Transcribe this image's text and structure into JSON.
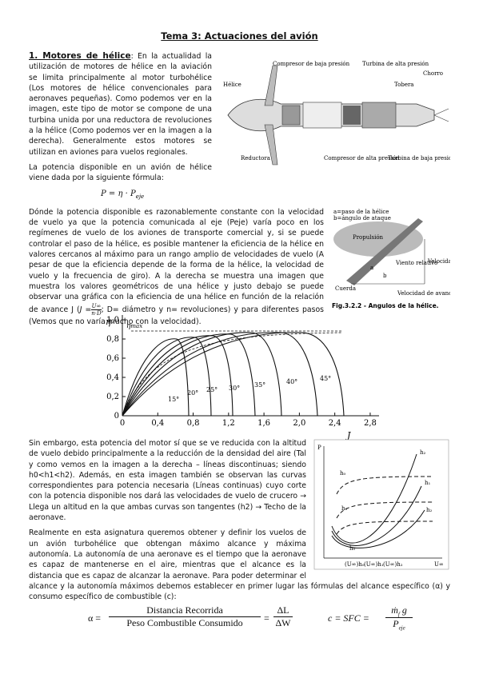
{
  "header": {
    "title": "Tema 3: Actuaciones del avión"
  },
  "section": {
    "heading": "1. Motores de hélice",
    "p1": ": En la actualidad la utilización de motores de hélice en la aviación se limita principalmente al motor turbohélice (Los motores de hélice convencionales para aeronaves pequeñas). Como podemos ver en la imagen, este tipo de motor se compone de una turbina unida por una reductora de revoluciones a la hélice (Como podemos ver en la imagen a la derecha). Generalmente estos motores se utilizan en aviones para vuelos regionales.",
    "p2": "La potencia disponible en un avión de hélice viene dada por la siguiente fórmula:",
    "power_formula": {
      "main": "P = η · P",
      "sub": "eje"
    },
    "p3a": "Dónde la potencia disponible es razonablemente constante con la velocidad de vuelo ya que la potencia comunicada al eje (Peje) varía poco en los regímenes de vuelo de los aviones de transporte comercial y, si se puede controlar el paso de la hélice, es posible mantener la eficiencia de la hélice en valores cercanos al máximo para un rango amplio de velocidades de vuelo (A pesar de que la eficiencia depende de la forma de la hélice, la velocidad de vuelo y la frecuencia de giro).  A la derecha se muestra una imagen que muestra los valores geométricos de una hélice y justo debajo se puede observar una gráfica con la eficiencia de una hélice en función de la relación de avance J (",
    "j_formula": {
      "lhs": "J =",
      "num": "U∞",
      "den": "n·D"
    },
    "p3b": "; D= diámetro y n= revoluciones) y para diferentes pasos (Vemos que no varía mucho con la velocidad).",
    "p4": "Sin embargo, esta potencia del motor sí que se ve reducida con la altitud de vuelo debido principalmente a la reducción de la densidad del aire (Tal y como vemos en la imagen a la derecha – líneas discontinuas; siendo h0<h1<h2). Además, en esta imagen también se observan las curvas correspondientes para potencia necesaria (Líneas continuas) cuyo corte con la potencia disponible nos dará las velocidades de vuelo de crucero → Llega un altitud en la que ambas curvas son tangentes (h2) → Techo de la aeronave.",
    "p5": "Realmente en esta asignatura queremos obtener y definir los vuelos de un avión turbohélice que obtengan máximo alcance y máxima autonomía. La autonomía de una aeronave es el tiempo que la aeronave es capaz de mantenerse en el aire, mientras que el alcance es la distancia que es capaz de alcanzar la aeronave. Para poder determinar el alcance y la autonomía máximos debemos establecer en primer lugar las fórmulas del alcance específico (α) y consumo específico de combustible (c):"
  },
  "engine_figure": {
    "labels": [
      "Compresor de baja presión",
      "Turbina de alta presión",
      "Hélice",
      "Tobera",
      "Chorro",
      "Reductora",
      "Compresor de alta presión",
      "Turbina de baja presión"
    ]
  },
  "blade_figure": {
    "legend_a": "a=paso de la hélice",
    "legend_b": "b=ángulo de ataque",
    "labels": [
      "Propulsión",
      "Velocidad lineal",
      "Viento relativo",
      "Cuerda",
      "Velocidad de avance",
      "a",
      "b"
    ],
    "caption": "Fig.3.2.2 - Angulos de la hélice."
  },
  "efficiency_plot": {
    "y_label": "η",
    "x_label": "J",
    "eta_max": "η",
    "eta_max_sub": "max",
    "xlim": [
      0,
      2.9
    ],
    "ylim": [
      0,
      1.05
    ],
    "xticks": [
      0,
      {
        "value": 0.4,
        "label": "0,4"
      },
      {
        "value": 0.8,
        "label": "0,8"
      },
      {
        "value": 1.2,
        "label": "1,2"
      },
      {
        "value": 1.6,
        "label": "1,6"
      },
      {
        "value": 2.0,
        "label": "2,0"
      },
      {
        "value": 2.4,
        "label": "2,4"
      },
      {
        "value": 2.8,
        "label": "2,8"
      }
    ],
    "yticks": [
      0,
      {
        "value": 0.2,
        "label": "0,2"
      },
      {
        "value": 0.4,
        "label": "0,4"
      },
      {
        "value": 0.6,
        "label": "0,6"
      },
      {
        "value": 0.8,
        "label": "0,8"
      },
      {
        "value": 1.0,
        "label": "1,0"
      }
    ],
    "pitch_labels": [
      "15°",
      "20°",
      "25°",
      "30°",
      "35°",
      "40°",
      "45°"
    ]
  },
  "power_figure": {
    "labels": [
      "P",
      "h₂",
      "h₀",
      "h₁",
      "h₂",
      "h₁",
      "h₀",
      "(U∞)h₀",
      "(U∞)h₁",
      "(U∞)h₂",
      "U∞"
    ]
  },
  "formulas": {
    "alpha": {
      "lhs": "α =",
      "num": "Distancia Recorrida",
      "den": "Peso Combustible Consumido",
      "eq": "=",
      "num2": "ΔL",
      "den2": "ΔW"
    },
    "sfc": {
      "lhs": "c = SFC =",
      "num": "ṁ",
      "num_sub": "f",
      "num_rest": " g",
      "den": "P",
      "den_sub": "eje"
    }
  }
}
